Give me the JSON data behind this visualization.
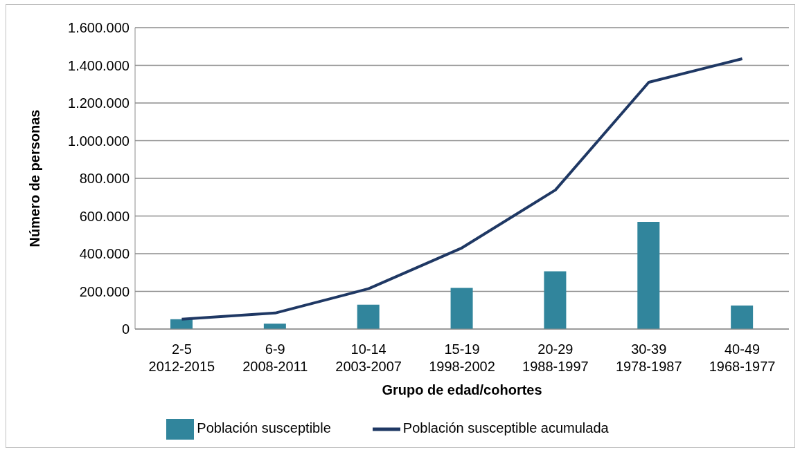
{
  "chart_data": {
    "type": "bar",
    "xlabel": "Grupo de edad/cohortes",
    "ylabel": "Número de personas",
    "categories": [
      "2-5\n2012-2015",
      "6-9\n2008-2011",
      "10-14\n2003-2007",
      "15-19\n1998-2002",
      "20-29\n1988-1997",
      "30-39\n1978-1987",
      "40-49\n1968-1977"
    ],
    "series": [
      {
        "name": "Población susceptible",
        "color": "#31859c",
        "values": [
          52000,
          28000,
          129000,
          218000,
          306000,
          569000,
          125000
        ]
      },
      {
        "name": "Población susceptible acumulada",
        "type": "line",
        "color": "#1f3864",
        "values": [
          52000,
          85000,
          214000,
          431000,
          738000,
          1310000,
          1435000
        ]
      }
    ],
    "ylim": [
      0,
      1600000
    ],
    "yticks": [
      {
        "value": 0,
        "label": "0"
      },
      {
        "value": 200000,
        "label": "200.000"
      },
      {
        "value": 400000,
        "label": "400.000"
      },
      {
        "value": 600000,
        "label": "600.000"
      },
      {
        "value": 800000,
        "label": "800.000"
      },
      {
        "value": 1000000,
        "label": "1.000.000"
      },
      {
        "value": 1200000,
        "label": "1.200.000"
      },
      {
        "value": 1400000,
        "label": "1.400.000"
      },
      {
        "value": 1600000,
        "label": "1.600.000"
      }
    ],
    "grid": "y",
    "legend": "bottom",
    "marker": "none"
  }
}
